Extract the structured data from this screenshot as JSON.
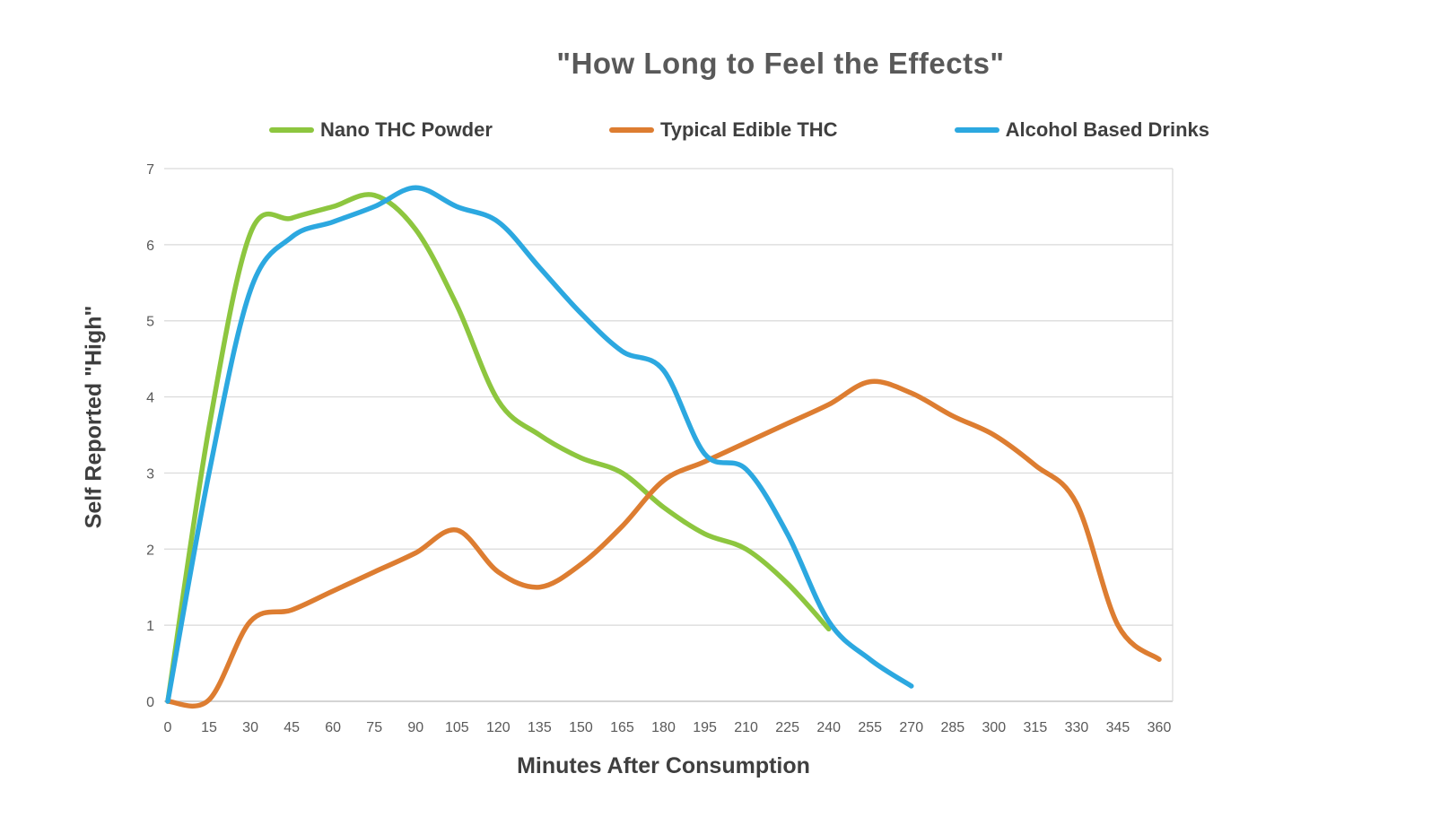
{
  "title": "\"How Long to Feel the Effects\"",
  "colors": {
    "grid": "#d9d9d9",
    "axis_line": "#c6c6c6",
    "tick_text": "#595959",
    "title_text": "#595959",
    "label_text": "#3f3f3f",
    "background": "#ffffff"
  },
  "chart_data": {
    "type": "line",
    "title": "\"How Long to Feel the Effects\"",
    "xlabel": "Minutes After Consumption",
    "ylabel": "Self Reported \"High\"",
    "xlim": [
      0,
      360
    ],
    "ylim": [
      0,
      7
    ],
    "xticks": [
      0,
      15,
      30,
      45,
      60,
      75,
      90,
      105,
      120,
      135,
      150,
      165,
      180,
      195,
      210,
      225,
      240,
      255,
      270,
      285,
      300,
      315,
      330,
      345,
      360
    ],
    "yticks": [
      0,
      1,
      2,
      3,
      4,
      5,
      6,
      7
    ],
    "grid": "horizontal",
    "legend_position": "top",
    "line_style": "smooth",
    "series": [
      {
        "name": "Nano THC Powder",
        "color": "#8dc63f",
        "x": [
          0,
          15,
          30,
          45,
          60,
          75,
          90,
          105,
          120,
          135,
          150,
          165,
          180,
          195,
          210,
          225,
          240
        ],
        "values": [
          0,
          3.6,
          6.15,
          6.35,
          6.5,
          6.65,
          6.2,
          5.2,
          3.95,
          3.5,
          3.2,
          3.0,
          2.55,
          2.2,
          2.0,
          1.55,
          0.95
        ]
      },
      {
        "name": "Typical Edible THC",
        "color": "#dd7d31",
        "x": [
          0,
          15,
          30,
          45,
          60,
          75,
          90,
          105,
          120,
          135,
          150,
          165,
          180,
          195,
          210,
          225,
          240,
          255,
          270,
          285,
          300,
          315,
          330,
          345,
          360
        ],
        "values": [
          0,
          0.02,
          1.05,
          1.2,
          1.45,
          1.7,
          1.95,
          2.25,
          1.7,
          1.5,
          1.8,
          2.3,
          2.9,
          3.15,
          3.4,
          3.65,
          3.9,
          4.2,
          4.05,
          3.75,
          3.5,
          3.1,
          2.6,
          1.0,
          0.55
        ]
      },
      {
        "name": "Alcohol Based Drinks",
        "color": "#2ca8e0",
        "x": [
          0,
          15,
          30,
          45,
          60,
          75,
          90,
          105,
          120,
          135,
          150,
          165,
          180,
          195,
          210,
          225,
          240,
          255,
          270
        ],
        "values": [
          0,
          3.0,
          5.4,
          6.1,
          6.3,
          6.5,
          6.75,
          6.5,
          6.3,
          5.7,
          5.1,
          4.6,
          4.35,
          3.25,
          3.05,
          2.2,
          1.05,
          0.55,
          0.2
        ]
      }
    ]
  }
}
